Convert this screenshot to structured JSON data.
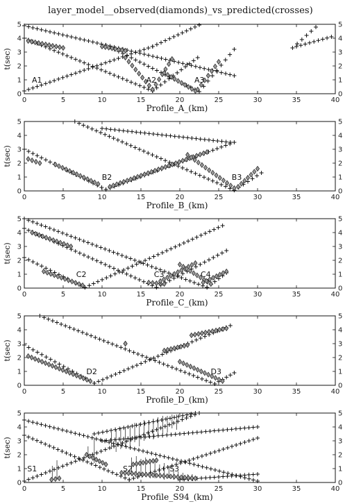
{
  "title": "layer_model__observed(diamonds)_vs_predicted(crosses)",
  "chart_data": [
    {
      "type": "scatter",
      "xlabel": "Profile_A_(km)",
      "ylabel": "t(sec)",
      "xlim": [
        0,
        40
      ],
      "ylim": [
        0,
        5
      ],
      "xticks": [
        0,
        5,
        10,
        15,
        20,
        25,
        30,
        35,
        40
      ],
      "yticks": [
        0,
        1,
        2,
        3,
        4,
        5
      ],
      "annotations": [
        {
          "text": "A1",
          "x": 0.8,
          "y": 1.0
        },
        {
          "text": "A2",
          "x": 15.5,
          "y": 1.0
        },
        {
          "text": "A3",
          "x": 21.7,
          "y": 1.0
        }
      ],
      "predicted_segments": [
        {
          "x": [
            0,
            27
          ],
          "y": [
            4.9,
            1.3
          ]
        },
        {
          "x": [
            0,
            16.5
          ],
          "y": [
            4.0,
            0.2
          ]
        },
        {
          "x": [
            16.5,
            22.3
          ],
          "y": [
            0.2,
            2.6
          ]
        },
        {
          "x": [
            0,
            16.5
          ],
          "y": [
            0.2,
            3.4
          ]
        },
        {
          "x": [
            16.5,
            22.5
          ],
          "y": [
            3.4,
            4.95
          ]
        },
        {
          "x": [
            10.5,
            22.5
          ],
          "y": [
            3.5,
            0.15
          ]
        },
        {
          "x": [
            22.5,
            27
          ],
          "y": [
            0.15,
            3.2
          ]
        },
        {
          "x": [
            34.5,
            37.5
          ],
          "y": [
            3.3,
            4.8
          ]
        },
        {
          "x": [
            35,
            39.5
          ],
          "y": [
            3.4,
            4.1
          ]
        }
      ],
      "observed_segments": [
        {
          "x": [
            0.5,
            5
          ],
          "y": [
            3.8,
            3.3
          ]
        },
        {
          "x": [
            10,
            13
          ],
          "y": [
            3.4,
            3.1
          ]
        },
        {
          "x": [
            13,
            16.5
          ],
          "y": [
            2.6,
            0.3
          ]
        },
        {
          "x": [
            16.5,
            19
          ],
          "y": [
            0.3,
            2.5
          ]
        },
        {
          "x": [
            18,
            22
          ],
          "y": [
            1.5,
            0.2
          ]
        },
        {
          "x": [
            22.3,
            25
          ],
          "y": [
            0.3,
            2.3
          ]
        }
      ],
      "error_bars": []
    },
    {
      "type": "scatter",
      "xlabel": "Profile_B_(km)",
      "ylabel": "t(sec)",
      "xlim": [
        0,
        40
      ],
      "ylim": [
        0,
        5
      ],
      "xticks": [
        0,
        5,
        10,
        15,
        20,
        25,
        30,
        35,
        40
      ],
      "yticks": [
        0,
        1,
        2,
        3,
        4,
        5
      ],
      "annotations": [
        {
          "text": "B2",
          "x": 9.8,
          "y": 1.0
        },
        {
          "text": "B3",
          "x": 26.5,
          "y": 1.0
        }
      ],
      "predicted_segments": [
        {
          "x": [
            0,
            10.5
          ],
          "y": [
            3.0,
            0.1
          ]
        },
        {
          "x": [
            10.5,
            27
          ],
          "y": [
            0.1,
            3.5
          ]
        },
        {
          "x": [
            6.5,
            27
          ],
          "y": [
            5.0,
            0.05
          ]
        },
        {
          "x": [
            10,
            26.5
          ],
          "y": [
            4.5,
            3.5
          ]
        },
        {
          "x": [
            27,
            30.5
          ],
          "y": [
            0.05,
            1.3
          ]
        }
      ],
      "observed_segments": [
        {
          "x": [
            0.5,
            2
          ],
          "y": [
            2.3,
            2.0
          ]
        },
        {
          "x": [
            4,
            9.5
          ],
          "y": [
            1.9,
            0.5
          ]
        },
        {
          "x": [
            11,
            23.5
          ],
          "y": [
            0.3,
            2.8
          ]
        },
        {
          "x": [
            21,
            27
          ],
          "y": [
            2.6,
            0.2
          ]
        },
        {
          "x": [
            27.5,
            30
          ],
          "y": [
            0.3,
            1.6
          ]
        }
      ],
      "error_bars": []
    },
    {
      "type": "scatter",
      "xlabel": "Profile_C_(km)",
      "ylabel": "t(sec)",
      "xlim": [
        0,
        40
      ],
      "ylim": [
        0,
        5
      ],
      "xticks": [
        0,
        5,
        10,
        15,
        20,
        25,
        30,
        35,
        40
      ],
      "yticks": [
        0,
        1,
        2,
        3,
        4,
        5
      ],
      "annotations": [
        {
          "text": "C2",
          "x": 6.5,
          "y": 1.0
        },
        {
          "text": "C3",
          "x": 16.5,
          "y": 1.0
        },
        {
          "text": "C4",
          "x": 22.5,
          "y": 1.0
        }
      ],
      "predicted_segments": [
        {
          "x": [
            0,
            7.8
          ],
          "y": [
            2.2,
            0.05
          ]
        },
        {
          "x": [
            7.8,
            25.5
          ],
          "y": [
            0.05,
            4.5
          ]
        },
        {
          "x": [
            0,
            17
          ],
          "y": [
            4.3,
            0.05
          ]
        },
        {
          "x": [
            17,
            26
          ],
          "y": [
            0.05,
            2.7
          ]
        },
        {
          "x": [
            0,
            23.5
          ],
          "y": [
            5.0,
            0.05
          ]
        },
        {
          "x": [
            23.5,
            26
          ],
          "y": [
            0.05,
            1.1
          ]
        }
      ],
      "observed_segments": [
        {
          "x": [
            1,
            6
          ],
          "y": [
            4.0,
            3.0
          ]
        },
        {
          "x": [
            2.5,
            7.5
          ],
          "y": [
            1.2,
            0.2
          ]
        },
        {
          "x": [
            16,
            18
          ],
          "y": [
            0.4,
            0.3
          ]
        },
        {
          "x": [
            17.5,
            22
          ],
          "y": [
            0.5,
            1.8
          ]
        },
        {
          "x": [
            20,
            24
          ],
          "y": [
            1.7,
            0.3
          ]
        },
        {
          "x": [
            23,
            26
          ],
          "y": [
            0.4,
            1.2
          ]
        }
      ],
      "error_bars": []
    },
    {
      "type": "scatter",
      "xlabel": "Profile_D_(km)",
      "ylabel": "t(sec)",
      "xlim": [
        0,
        40
      ],
      "ylim": [
        0,
        5
      ],
      "xticks": [
        0,
        5,
        10,
        15,
        20,
        25,
        30,
        35,
        40
      ],
      "yticks": [
        0,
        1,
        2,
        3,
        4,
        5
      ],
      "annotations": [
        {
          "text": "D2",
          "x": 7.8,
          "y": 1.0
        },
        {
          "text": "D3",
          "x": 23.8,
          "y": 1.0
        }
      ],
      "predicted_segments": [
        {
          "x": [
            0,
            9
          ],
          "y": [
            2.9,
            0.15
          ]
        },
        {
          "x": [
            9,
            26.5
          ],
          "y": [
            0.15,
            4.3
          ]
        },
        {
          "x": [
            2,
            24.5
          ],
          "y": [
            5.0,
            0.1
          ]
        },
        {
          "x": [
            24.5,
            27
          ],
          "y": [
            0.1,
            0.9
          ]
        }
      ],
      "observed_segments": [
        {
          "x": [
            0.5,
            8.5
          ],
          "y": [
            2.1,
            0.3
          ]
        },
        {
          "x": [
            13,
            13
          ],
          "y": [
            3.0,
            3.0
          ]
        },
        {
          "x": [
            18,
            21
          ],
          "y": [
            2.5,
            2.9
          ]
        },
        {
          "x": [
            21.5,
            26
          ],
          "y": [
            3.6,
            4.1
          ]
        },
        {
          "x": [
            20,
            25.5
          ],
          "y": [
            1.7,
            0.3
          ]
        }
      ],
      "error_bars": []
    },
    {
      "type": "scatter",
      "xlabel": "Profile_S94_(km)",
      "ylabel": "t(sec)",
      "xlim": [
        0,
        40
      ],
      "ylim": [
        0,
        5
      ],
      "xticks": [
        0,
        5,
        10,
        15,
        20,
        25,
        30,
        35,
        40
      ],
      "yticks": [
        0,
        1,
        2,
        3,
        4,
        5
      ],
      "annotations": [
        {
          "text": "S1",
          "x": 0.2,
          "y": 1.0
        },
        {
          "text": "S2",
          "x": 12.5,
          "y": 1.0
        },
        {
          "text": "S3",
          "x": 18.5,
          "y": 1.0
        }
      ],
      "predicted_segments": [
        {
          "x": [
            0,
            22.5
          ],
          "y": [
            0.1,
            5.0
          ]
        },
        {
          "x": [
            0,
            30
          ],
          "y": [
            4.5,
            0.1
          ]
        },
        {
          "x": [
            0,
            13.5
          ],
          "y": [
            3.4,
            0.2
          ]
        },
        {
          "x": [
            13.5,
            30
          ],
          "y": [
            0.2,
            3.2
          ]
        },
        {
          "x": [
            10,
            30
          ],
          "y": [
            3.0,
            4.0
          ]
        },
        {
          "x": [
            9,
            22
          ],
          "y": [
            3.5,
            5.0
          ]
        },
        {
          "x": [
            20,
            30
          ],
          "y": [
            0.2,
            0.6
          ]
        }
      ],
      "observed_segments": [
        {
          "x": [
            3.5,
            4.5
          ],
          "y": [
            0.2,
            0.3
          ]
        },
        {
          "x": [
            8,
            10.5
          ],
          "y": [
            2.0,
            1.3
          ]
        },
        {
          "x": [
            12.5,
            22
          ],
          "y": [
            0.7,
            0.3
          ]
        },
        {
          "x": [
            14,
            17
          ],
          "y": [
            1.3,
            1.6
          ]
        }
      ],
      "error_bars": [
        {
          "x": 3.6,
          "y0": 0.2,
          "y1": 1.2
        },
        {
          "x": 4.2,
          "y0": 0.2,
          "y1": 1.6
        },
        {
          "x": 8.2,
          "y0": 1.9,
          "y1": 2.6
        },
        {
          "x": 9.0,
          "y0": 1.4,
          "y1": 3.2
        },
        {
          "x": 11.2,
          "y0": 2.4,
          "y1": 3.6
        },
        {
          "x": 11.8,
          "y0": 2.2,
          "y1": 3.8
        },
        {
          "x": 12.4,
          "y0": 2.4,
          "y1": 4.0
        },
        {
          "x": 13.0,
          "y0": 2.6,
          "y1": 4.0
        },
        {
          "x": 13.6,
          "y0": 2.5,
          "y1": 4.1
        },
        {
          "x": 14.2,
          "y0": 2.9,
          "y1": 4.3
        },
        {
          "x": 14.8,
          "y0": 2.6,
          "y1": 4.3
        },
        {
          "x": 15.4,
          "y0": 3.0,
          "y1": 4.5
        },
        {
          "x": 16.0,
          "y0": 3.2,
          "y1": 4.5
        },
        {
          "x": 16.6,
          "y0": 3.1,
          "y1": 4.6
        },
        {
          "x": 17.2,
          "y0": 3.4,
          "y1": 4.7
        },
        {
          "x": 17.8,
          "y0": 3.5,
          "y1": 4.8
        },
        {
          "x": 18.4,
          "y0": 3.6,
          "y1": 4.8
        },
        {
          "x": 19.0,
          "y0": 3.9,
          "y1": 4.9
        },
        {
          "x": 19.6,
          "y0": 3.8,
          "y1": 4.9
        },
        {
          "x": 13.8,
          "y0": 0.6,
          "y1": 1.8
        },
        {
          "x": 14.4,
          "y0": 0.5,
          "y1": 1.9
        },
        {
          "x": 15.0,
          "y0": 0.5,
          "y1": 1.7
        },
        {
          "x": 15.6,
          "y0": 0.4,
          "y1": 1.8
        },
        {
          "x": 16.2,
          "y0": 0.3,
          "y1": 1.7
        },
        {
          "x": 16.8,
          "y0": 0.3,
          "y1": 1.5
        },
        {
          "x": 17.4,
          "y0": 0.4,
          "y1": 1.3
        },
        {
          "x": 18.0,
          "y0": 0.2,
          "y1": 1.4
        },
        {
          "x": 18.6,
          "y0": 0.3,
          "y1": 1.2
        },
        {
          "x": 19.2,
          "y0": 0.2,
          "y1": 1.0
        },
        {
          "x": 19.8,
          "y0": 0.1,
          "y1": 0.8
        },
        {
          "x": 20.4,
          "y0": 0.1,
          "y1": 0.7
        },
        {
          "x": 21.0,
          "y0": 0.1,
          "y1": 0.6
        },
        {
          "x": 21.6,
          "y0": 0.1,
          "y1": 0.6
        }
      ]
    }
  ]
}
